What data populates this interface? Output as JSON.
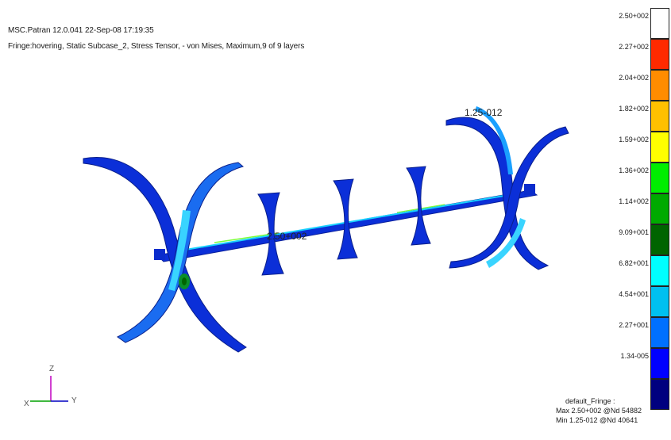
{
  "header": {
    "title_line": "MSC.Patran 12.0.041 22-Sep-08 17:19:35",
    "result_line": "Fringe:hovering, Static Subcase_2, Stress Tensor, - von Mises, Maximum,9 of 9 layers"
  },
  "model_labels": {
    "min_marker": "1.25-012",
    "max_marker": "2.50+002"
  },
  "legend": {
    "colors": [
      "#ffffff",
      "#ff2a00",
      "#ff8c00",
      "#ffc000",
      "#ffff00",
      "#00ee00",
      "#00aa00",
      "#006400",
      "#00ffff",
      "#00c0f0",
      "#0070ff",
      "#0000ff",
      "#00007f"
    ],
    "ticks": [
      "2.50+002",
      "2.27+002",
      "2.04+002",
      "1.82+002",
      "1.59+002",
      "1.36+002",
      "1.14+002",
      "9.09+001",
      "6.82+001",
      "4.54+001",
      "2.27+001",
      "1.34-005"
    ],
    "name": "default_Fringe :",
    "max_text": "Max 2.50+002 @Nd 54882",
    "min_text": "Min 1.25-012 @Nd 40641"
  },
  "axes": {
    "z": "Z",
    "x": "X",
    "y": "Y"
  }
}
